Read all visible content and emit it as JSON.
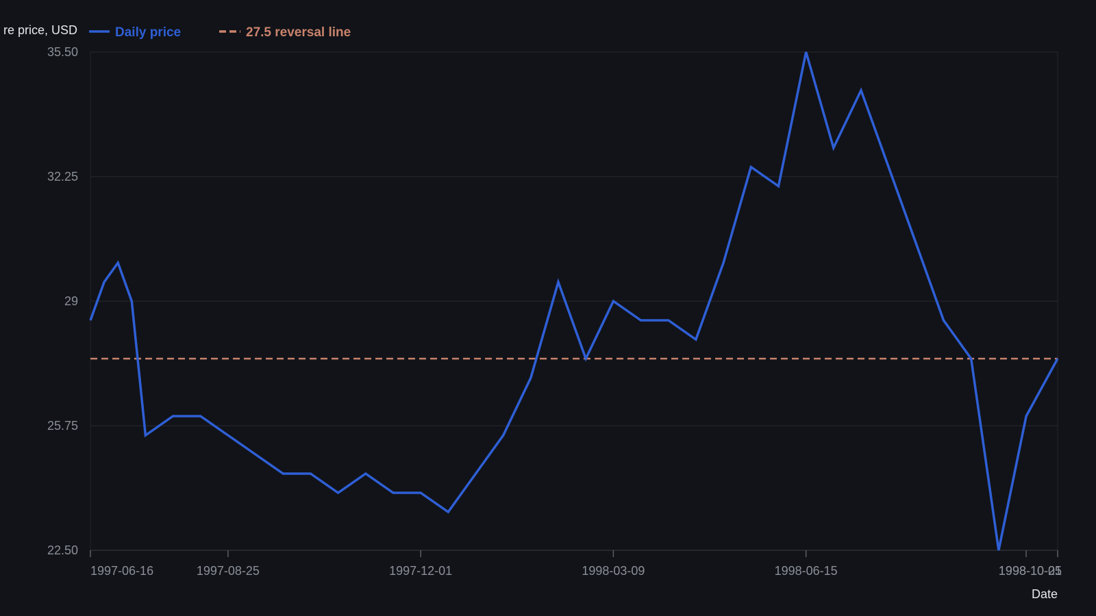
{
  "chart_data": {
    "type": "line",
    "ylabel": "re price, USD",
    "xlabel": "Date",
    "ylim": [
      22.5,
      35.5
    ],
    "yticks": [
      "22.50",
      "25.75",
      "29",
      "32.25",
      "35.50"
    ],
    "xticks": [
      "1997-06-16",
      "1997-08-25",
      "1997-12-01",
      "1998-03-09",
      "1998-06-15",
      "1998-10-05",
      "1998-10-21"
    ],
    "grid": true,
    "legend_position": "top-left",
    "series": [
      {
        "name": "Daily price",
        "color": "#2f5fd6",
        "style": "solid",
        "x": [
          "1997-06-16",
          "1997-06-23",
          "1997-06-30",
          "1997-07-07",
          "1997-07-14",
          "1997-07-28",
          "1997-08-11",
          "1997-08-25",
          "1997-09-08",
          "1997-09-22",
          "1997-10-06",
          "1997-10-20",
          "1997-11-03",
          "1997-11-17",
          "1997-12-01",
          "1997-12-15",
          "1997-12-29",
          "1998-01-12",
          "1998-01-26",
          "1998-02-09",
          "1998-02-23",
          "1998-03-09",
          "1998-03-23",
          "1998-04-06",
          "1998-04-20",
          "1998-05-04",
          "1998-05-18",
          "1998-06-01",
          "1998-06-15",
          "1998-06-29",
          "1998-07-13",
          "1998-07-27",
          "1998-08-10",
          "1998-08-24",
          "1998-09-07",
          "1998-09-21",
          "1998-10-05",
          "1998-10-21"
        ],
        "y": [
          28.5,
          29.5,
          30.0,
          29.0,
          25.5,
          26.0,
          26.0,
          25.5,
          25.0,
          24.5,
          24.5,
          24.0,
          24.5,
          24.0,
          24.0,
          23.5,
          24.5,
          25.5,
          27.0,
          29.5,
          27.5,
          29.0,
          28.5,
          28.5,
          28.0,
          30.0,
          32.5,
          32.0,
          35.5,
          33.0,
          34.5,
          32.5,
          30.5,
          28.5,
          27.5,
          22.5,
          26.0,
          27.5
        ]
      },
      {
        "name": "27.5 reversal line",
        "color": "#c9836c",
        "style": "dashed",
        "y_constant": 27.5
      }
    ]
  }
}
